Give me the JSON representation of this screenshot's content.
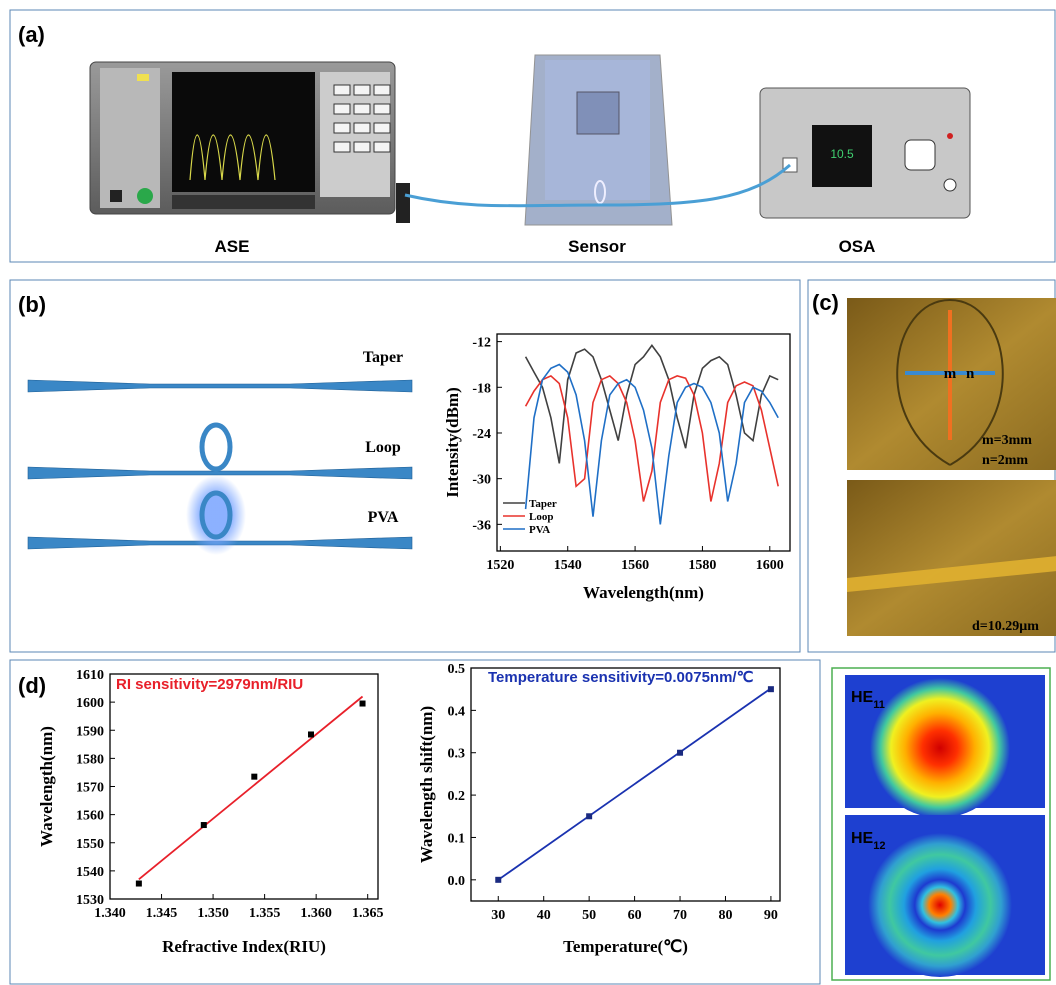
{
  "panels": {
    "a": {
      "label": "(a)",
      "devices": [
        "ASE",
        "Sensor",
        "OSA"
      ]
    },
    "b": {
      "label": "(b)",
      "fibers": [
        "Taper",
        "Loop",
        "PVA"
      ]
    },
    "c": {
      "label": "(c)",
      "annotations": [
        "m",
        "n",
        "m=3mm",
        "n=2mm",
        "d=10.29μm"
      ]
    },
    "d": {
      "label": "(d)",
      "modes": [
        {
          "base": "HE",
          "sub": "11"
        },
        {
          "base": "HE",
          "sub": "12"
        }
      ]
    }
  },
  "chart_data": [
    {
      "type": "line",
      "x_label": "Wavelength(nm)",
      "y_label": "Intensity(dBm)",
      "x": [
        1527.5,
        1530,
        1532.5,
        1535,
        1537.5,
        1540,
        1542.5,
        1545,
        1547.5,
        1550,
        1552.5,
        1555,
        1557.5,
        1560,
        1562.5,
        1565,
        1567.5,
        1570,
        1572.5,
        1575,
        1577.5,
        1580,
        1582.5,
        1585,
        1587.5,
        1590,
        1592.5,
        1595,
        1597.5,
        1600,
        1602.5
      ],
      "series": [
        {
          "name": "Taper",
          "color": "#404040",
          "values": [
            -14,
            -16,
            -18,
            -22,
            -28,
            -17,
            -13.5,
            -13,
            -14,
            -17,
            -21,
            -25,
            -19,
            -15,
            -14,
            -12.5,
            -14,
            -17,
            -22,
            -26,
            -19,
            -15.5,
            -14.5,
            -14,
            -15,
            -19,
            -24,
            -25,
            -19,
            -16.5,
            -17
          ]
        },
        {
          "name": "Loop",
          "color": "#e8322c",
          "values": [
            -20.5,
            -18.5,
            -17,
            -16.5,
            -17.5,
            -22,
            -31,
            -30,
            -20,
            -17,
            -16.5,
            -17.5,
            -20,
            -25,
            -33,
            -29,
            -20,
            -17,
            -16.5,
            -16.8,
            -19,
            -24,
            -33,
            -28,
            -20,
            -17.8,
            -17.3,
            -17.8,
            -21,
            -26,
            -31
          ]
        },
        {
          "name": "PVA",
          "color": "#1f6fc6",
          "values": [
            -34,
            -22,
            -17,
            -15.5,
            -15,
            -16,
            -19,
            -25,
            -35,
            -25,
            -19,
            -17.5,
            -17,
            -18,
            -21,
            -26,
            -36,
            -27,
            -20,
            -18,
            -17.5,
            -18,
            -20,
            -24,
            -33,
            -28,
            -20,
            -18,
            -18.5,
            -20,
            -22
          ]
        }
      ],
      "xlim": [
        1519,
        1606
      ],
      "ylim": [
        -39.5,
        -11
      ],
      "xticks": [
        1520,
        1540,
        1560,
        1580,
        1600
      ],
      "yticks": [
        -12,
        -18,
        -24,
        -30,
        -36
      ],
      "legend": "lower left"
    },
    {
      "type": "scatter",
      "annotation": "RI sensitivity=2979nm/RIU",
      "annotation_color": "#e8202a",
      "x_label": "Refractive Index(RIU)",
      "y_label": "Wavelength(nm)",
      "series": [
        {
          "color": "#000000",
          "x": [
            1.3428,
            1.3491,
            1.354,
            1.3595,
            1.3645
          ],
          "values": [
            1535.5,
            1556.3,
            1573.5,
            1588.5,
            1599.5
          ]
        }
      ],
      "fit": {
        "color": "#e8202a",
        "x": [
          1.3428,
          1.3645
        ],
        "values": [
          1537,
          1602
        ]
      },
      "xlim": [
        1.34,
        1.366
      ],
      "ylim": [
        1530,
        1610
      ],
      "xticks": [
        {
          "value": 1.34,
          "label": "1.340"
        },
        {
          "value": 1.345,
          "label": "1.345"
        },
        {
          "value": 1.35,
          "label": "1.350"
        },
        {
          "value": 1.355,
          "label": "1.355"
        },
        {
          "value": 1.36,
          "label": "1.360"
        },
        {
          "value": 1.365,
          "label": "1.365"
        }
      ],
      "yticks": [
        1530,
        1540,
        1550,
        1560,
        1570,
        1580,
        1590,
        1600,
        1610
      ]
    },
    {
      "type": "scatter",
      "annotation": "Temperature sensitivity=0.0075nm/℃",
      "annotation_color": "#1a32b0",
      "x_label": "Temperature(℃)",
      "y_label": "Wavelength shift(nm)",
      "series": [
        {
          "color": "#1a2a80",
          "x": [
            30,
            50,
            70,
            90
          ],
          "values": [
            0,
            0.15,
            0.3,
            0.45
          ]
        }
      ],
      "fit": {
        "color": "#1a32b0",
        "x": [
          30,
          90
        ],
        "values": [
          0,
          0.452
        ]
      },
      "xlim": [
        24,
        92
      ],
      "ylim": [
        -0.05,
        0.5
      ],
      "xticks": [
        30,
        40,
        50,
        60,
        70,
        80,
        90
      ],
      "yticks": [
        {
          "value": 0,
          "label": "0.0"
        },
        0.1,
        0.2,
        0.3,
        0.4,
        0.5
      ]
    }
  ]
}
